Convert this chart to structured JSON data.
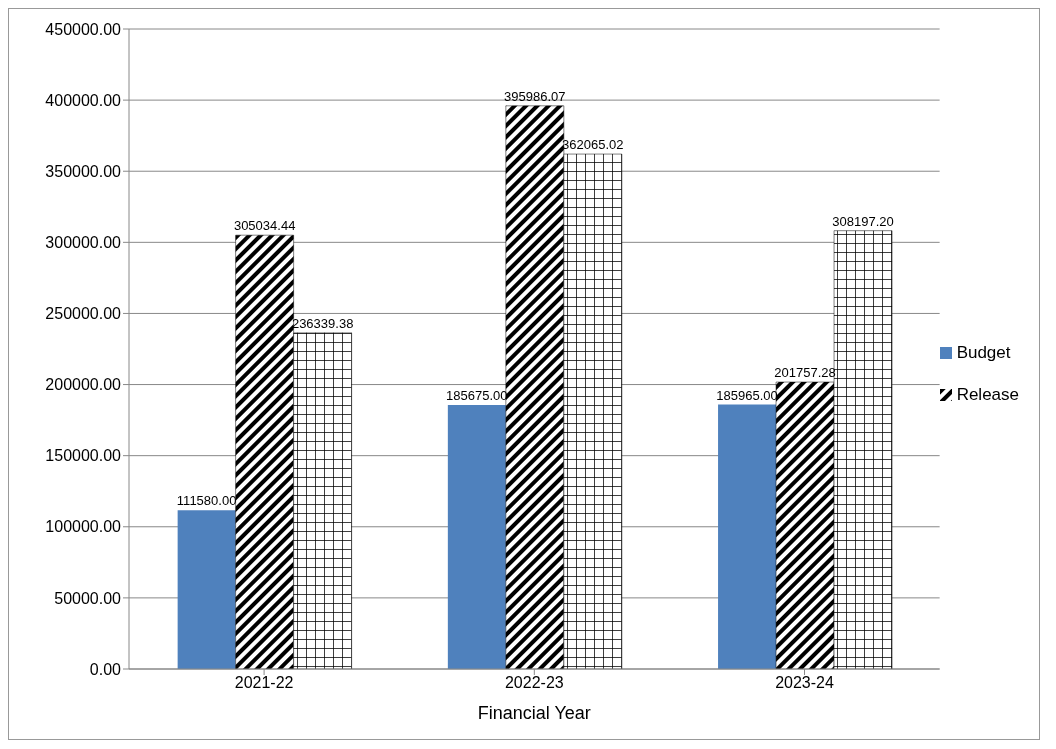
{
  "chart_data": {
    "type": "bar",
    "xlabel": "Financial Year",
    "categories": [
      "2021-22",
      "2022-23",
      "2023-24"
    ],
    "series": [
      {
        "name": "Budget",
        "color": "#4f81bd",
        "values": [
          111580.0,
          185675.0,
          185965.0
        ],
        "value_labels": [
          "111580.00",
          "185675.00",
          "185965.00"
        ]
      },
      {
        "name": "Release",
        "color": "#000000",
        "values": [
          305034.44,
          395986.07,
          201757.28
        ],
        "value_labels": [
          "305034.44",
          "395986.07",
          "201757.28"
        ]
      },
      {
        "color": "#000000",
        "values": [
          236339.38,
          362065.02,
          308197.2
        ],
        "value_labels": [
          "236339.38",
          "362065.02",
          "308197.20"
        ]
      }
    ],
    "ylim": [
      0,
      450000
    ],
    "yticks": [
      {
        "value": 0,
        "label": "0.00"
      },
      {
        "value": 50000,
        "label": "50000.00"
      },
      {
        "value": 100000,
        "label": "100000.00"
      },
      {
        "value": 150000,
        "label": "150000.00"
      },
      {
        "value": 200000,
        "label": "200000.00"
      },
      {
        "value": 250000,
        "label": "250000.00"
      },
      {
        "value": 300000,
        "label": "300000.00"
      },
      {
        "value": 350000,
        "label": "350000.00"
      },
      {
        "value": 400000,
        "label": "400000.00"
      },
      {
        "value": 450000,
        "label": "450000.00"
      }
    ],
    "grid": "y",
    "legend": "right"
  }
}
